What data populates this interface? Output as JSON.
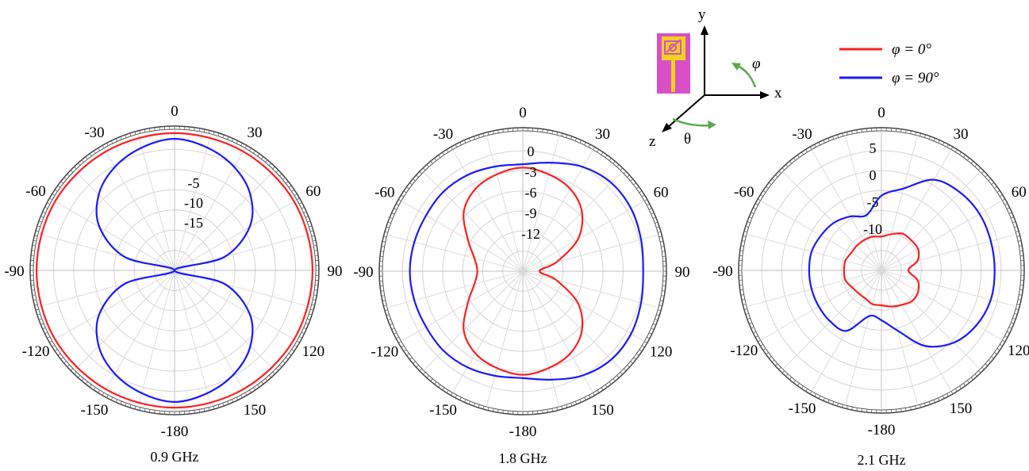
{
  "legend": {
    "entries": [
      {
        "label": "φ = 0°",
        "color": "#ff2020"
      },
      {
        "label": "φ = 90°",
        "color": "#1a1aff"
      }
    ]
  },
  "axes_inset": {
    "y_label": "y",
    "x_label": "x",
    "z_label": "z",
    "phi_label": "φ",
    "theta_label": "θ",
    "arrow_color": "#5aaa4a",
    "antenna_colors": {
      "substrate": "#d84fc8",
      "patch": "#f2d21a"
    }
  },
  "chart_data": [
    {
      "type": "polar",
      "caption": "0.9 GHz",
      "angle_ticks": [
        "0",
        "30",
        "60",
        "90",
        "120",
        "150",
        "-180",
        "-150",
        "-120",
        "-90",
        "-60",
        "-30"
      ],
      "radial_ticks": [
        -5,
        -10,
        -15
      ],
      "radial_tick_labels": [
        "-5",
        "-10",
        "-15"
      ],
      "rlim": [
        -22,
        0
      ],
      "grid": true,
      "series": [
        {
          "color": "#ff2020",
          "angles": [
            0,
            30,
            60,
            90,
            120,
            150,
            180,
            210,
            240,
            270,
            300,
            330
          ],
          "values": [
            -0.6,
            -0.6,
            -0.5,
            -0.5,
            -0.5,
            -0.6,
            -0.6,
            -0.6,
            -0.5,
            -0.5,
            -0.5,
            -0.6
          ]
        },
        {
          "color": "#1a1aff",
          "angles": [
            0,
            15,
            30,
            45,
            60,
            75,
            90,
            105,
            120,
            135,
            150,
            165,
            180,
            195,
            210,
            225,
            240,
            255,
            270,
            285,
            300,
            315,
            330,
            345
          ],
          "values": [
            -1.5,
            -2.2,
            -3.4,
            -5.3,
            -8.5,
            -14,
            -22,
            -14,
            -8.5,
            -5.3,
            -3.4,
            -2.2,
            -1.5,
            -2.2,
            -3.4,
            -5.3,
            -8.5,
            -14,
            -22,
            -14,
            -8.5,
            -5.3,
            -3.4,
            -2.2
          ]
        }
      ]
    },
    {
      "type": "polar",
      "caption": "1.8 GHz",
      "angle_ticks": [
        "0",
        "30",
        "60",
        "90",
        "120",
        "150",
        "-180",
        "-150",
        "-120",
        "-90",
        "-60",
        "-30"
      ],
      "radial_ticks": [
        0,
        -3,
        -6,
        -9,
        -12
      ],
      "radial_tick_labels": [
        "0",
        "-3",
        "-6",
        "-9",
        "-12"
      ],
      "rlim": [
        -18,
        3
      ],
      "grid": true,
      "series": [
        {
          "color": "#ff2020",
          "angles": [
            0,
            15,
            30,
            45,
            60,
            75,
            90,
            105,
            120,
            135,
            150,
            165,
            180,
            195,
            210,
            225,
            240,
            255,
            270,
            285,
            300,
            315,
            330,
            345
          ],
          "values": [
            -2.5,
            -3.0,
            -3.8,
            -5.5,
            -8.5,
            -12.8,
            -15.5,
            -12.8,
            -8.5,
            -5.5,
            -3.8,
            -3.0,
            -2.5,
            -3.0,
            -3.8,
            -5.5,
            -8.5,
            -10.5,
            -11.2,
            -10.5,
            -8.5,
            -5.5,
            -3.8,
            -3.0
          ]
        },
        {
          "color": "#1a1aff",
          "angles": [
            0,
            15,
            30,
            45,
            60,
            75,
            90,
            105,
            120,
            135,
            150,
            165,
            180,
            195,
            210,
            225,
            240,
            255,
            270,
            285,
            300,
            315,
            330,
            345
          ],
          "values": [
            -2.0,
            -1.2,
            0.0,
            0.7,
            0.7,
            0.3,
            0.0,
            0.3,
            0.7,
            0.7,
            0.0,
            -1.2,
            -2.0,
            -1.8,
            -1.4,
            -1.2,
            -1.3,
            -1.2,
            -1.1,
            -1.2,
            -1.3,
            -1.2,
            -1.4,
            -1.8
          ]
        }
      ]
    },
    {
      "type": "polar",
      "caption": "2.1 GHz",
      "angle_ticks": [
        "0",
        "30",
        "60",
        "90",
        "120",
        "150",
        "-180",
        "-150",
        "-120",
        "-90",
        "-60",
        "-30"
      ],
      "radial_ticks": [
        5,
        0,
        -5,
        -10
      ],
      "radial_tick_labels": [
        "5",
        "0",
        "-5",
        "-10"
      ],
      "rlim": [
        -20,
        8
      ],
      "grid": true,
      "series": [
        {
          "color": "#ff2020",
          "angles": [
            0,
            15,
            30,
            45,
            60,
            75,
            90,
            105,
            120,
            135,
            150,
            165,
            180,
            195,
            210,
            225,
            240,
            255,
            270,
            285,
            300,
            315,
            330,
            345
          ],
          "values": [
            -13.2,
            -12.5,
            -11.5,
            -11.5,
            -11.5,
            -12.5,
            -14.6,
            -12.5,
            -11.5,
            -11.3,
            -12.0,
            -12.5,
            -13.0,
            -13.0,
            -13.5,
            -13.5,
            -13.2,
            -12.5,
            -12.5,
            -12.5,
            -13.0,
            -13.0,
            -13.0,
            -13.0
          ]
        },
        {
          "color": "#1a1aff",
          "angles": [
            0,
            15,
            30,
            45,
            60,
            75,
            90,
            105,
            120,
            135,
            150,
            165,
            180,
            195,
            210,
            225,
            240,
            255,
            270,
            285,
            300,
            315,
            330,
            345
          ],
          "values": [
            -5.0,
            -3.0,
            1.0,
            2.2,
            2.7,
            2.7,
            2.7,
            2.7,
            2.0,
            0.5,
            -2.5,
            -7.5,
            -10.0,
            -10.5,
            -6.0,
            -5.5,
            -5.5,
            -5.5,
            -5.5,
            -5.5,
            -6.0,
            -6.5,
            -7.5,
            -8.5
          ]
        }
      ]
    }
  ]
}
